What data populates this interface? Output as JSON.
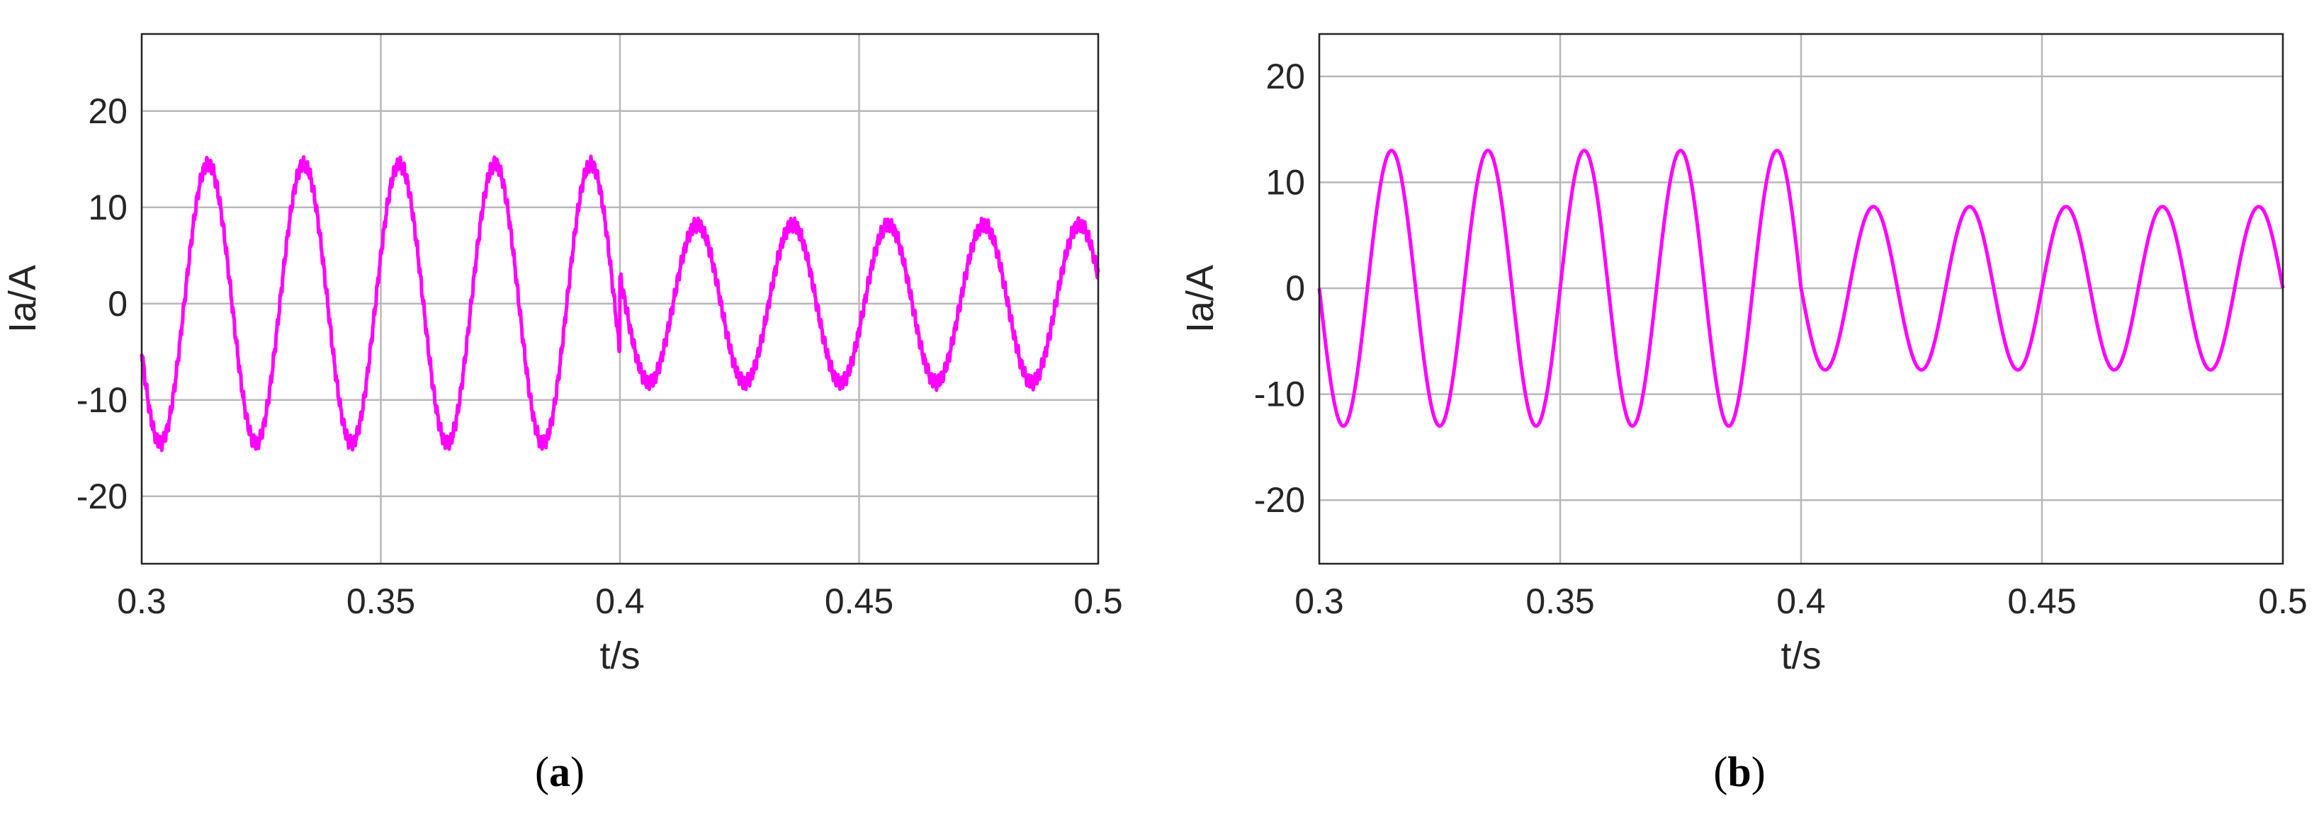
{
  "chart_data": [
    {
      "type": "line",
      "panel_label": "a",
      "xlabel": "t/s",
      "ylabel": "Ia/A",
      "xlim": [
        0.3,
        0.5
      ],
      "ylim": [
        -27,
        28
      ],
      "xticks": [
        0.3,
        0.35,
        0.4,
        0.45,
        0.5
      ],
      "xtick_labels": [
        "0.3",
        "0.35",
        "0.4",
        "0.45",
        "0.5"
      ],
      "yticks": [
        -20,
        -10,
        0,
        10,
        20
      ],
      "ytick_labels": [
        "-20",
        "-10",
        "0",
        "10",
        "20"
      ],
      "grid": true,
      "line_color": "#ff00ff",
      "series": [
        {
          "frequency_hz": 50,
          "segments": [
            {
              "t_start": 0.3,
              "t_end": 0.4,
              "amplitude": 14.5,
              "phase_deg": 200
            },
            {
              "t_start": 0.4,
              "t_end": 0.5,
              "amplitude": 8.2,
              "phase_deg": 160
            }
          ],
          "ripple_amplitude": 0.8
        }
      ]
    },
    {
      "type": "line",
      "panel_label": "b",
      "xlabel": "t/s",
      "ylabel": "Ia/A",
      "xlim": [
        0.3,
        0.5
      ],
      "ylim": [
        -26,
        24
      ],
      "xticks": [
        0.3,
        0.35,
        0.4,
        0.45,
        0.5
      ],
      "xtick_labels": [
        "0.3",
        "0.35",
        "0.4",
        "0.45",
        "0.5"
      ],
      "yticks": [
        -20,
        -10,
        0,
        10,
        20
      ],
      "ytick_labels": [
        "-20",
        "-10",
        "0",
        "10",
        "20"
      ],
      "grid": true,
      "line_color": "#ff00ff",
      "series": [
        {
          "frequency_hz": 50,
          "segments": [
            {
              "t_start": 0.3,
              "t_end": 0.4,
              "amplitude": 13,
              "phase_deg": 180
            },
            {
              "t_start": 0.4,
              "t_end": 0.5,
              "amplitude": 7.7,
              "phase_deg": 180
            }
          ],
          "ripple_amplitude": 0
        }
      ]
    }
  ]
}
